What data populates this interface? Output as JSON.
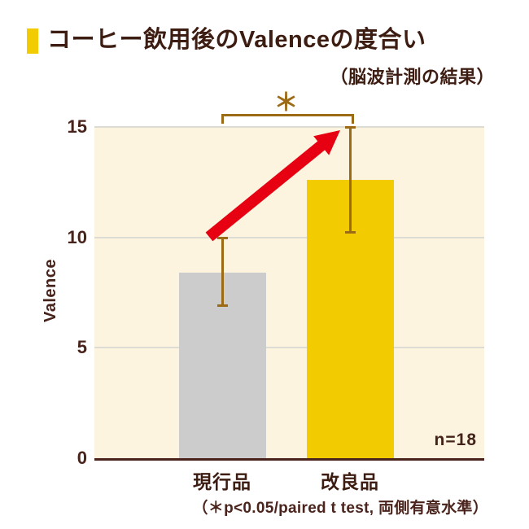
{
  "header": {
    "title": "コーヒー飲用後のValenceの度合い",
    "subtitle": "（脳波計測の結果）"
  },
  "chart_data": {
    "type": "bar",
    "title": "コーヒー飲用後のValenceの度合い",
    "subtitle": "（脳波計測の結果）",
    "categories": [
      "現行品",
      "改良品"
    ],
    "series": [
      {
        "name": "Valence",
        "values": [
          8.4,
          12.6
        ]
      }
    ],
    "error_bars": [
      {
        "low": 6.9,
        "high": 10.0
      },
      {
        "low": 10.2,
        "high": 15.0
      }
    ],
    "bar_colors": [
      "#cccccc",
      "#f2cb00"
    ],
    "xlabel": "",
    "ylabel": "Valence",
    "ylim": [
      0,
      15
    ],
    "yticks": [
      0,
      5,
      10,
      15
    ],
    "grid": true,
    "legend": "none",
    "annotations": {
      "significance_marker": "＊",
      "significance_between": [
        "現行品",
        "改良品"
      ],
      "sample_size": "n=18",
      "footnote": "（＊p<0.05/paired t test, 両側有意水準）"
    }
  },
  "colors": {
    "accent_yellow": "#f2cb00",
    "plot_background": "#fcf4df",
    "bar_gray": "#cccccc",
    "bar_yellow": "#f2cb00",
    "error_bar_brown": "#9c6b16",
    "arrow_red": "#e60012",
    "text_dark_brown": "#3d1d12",
    "axis_brown": "#4a241c",
    "gridline_gray": "#dcdcd4"
  }
}
